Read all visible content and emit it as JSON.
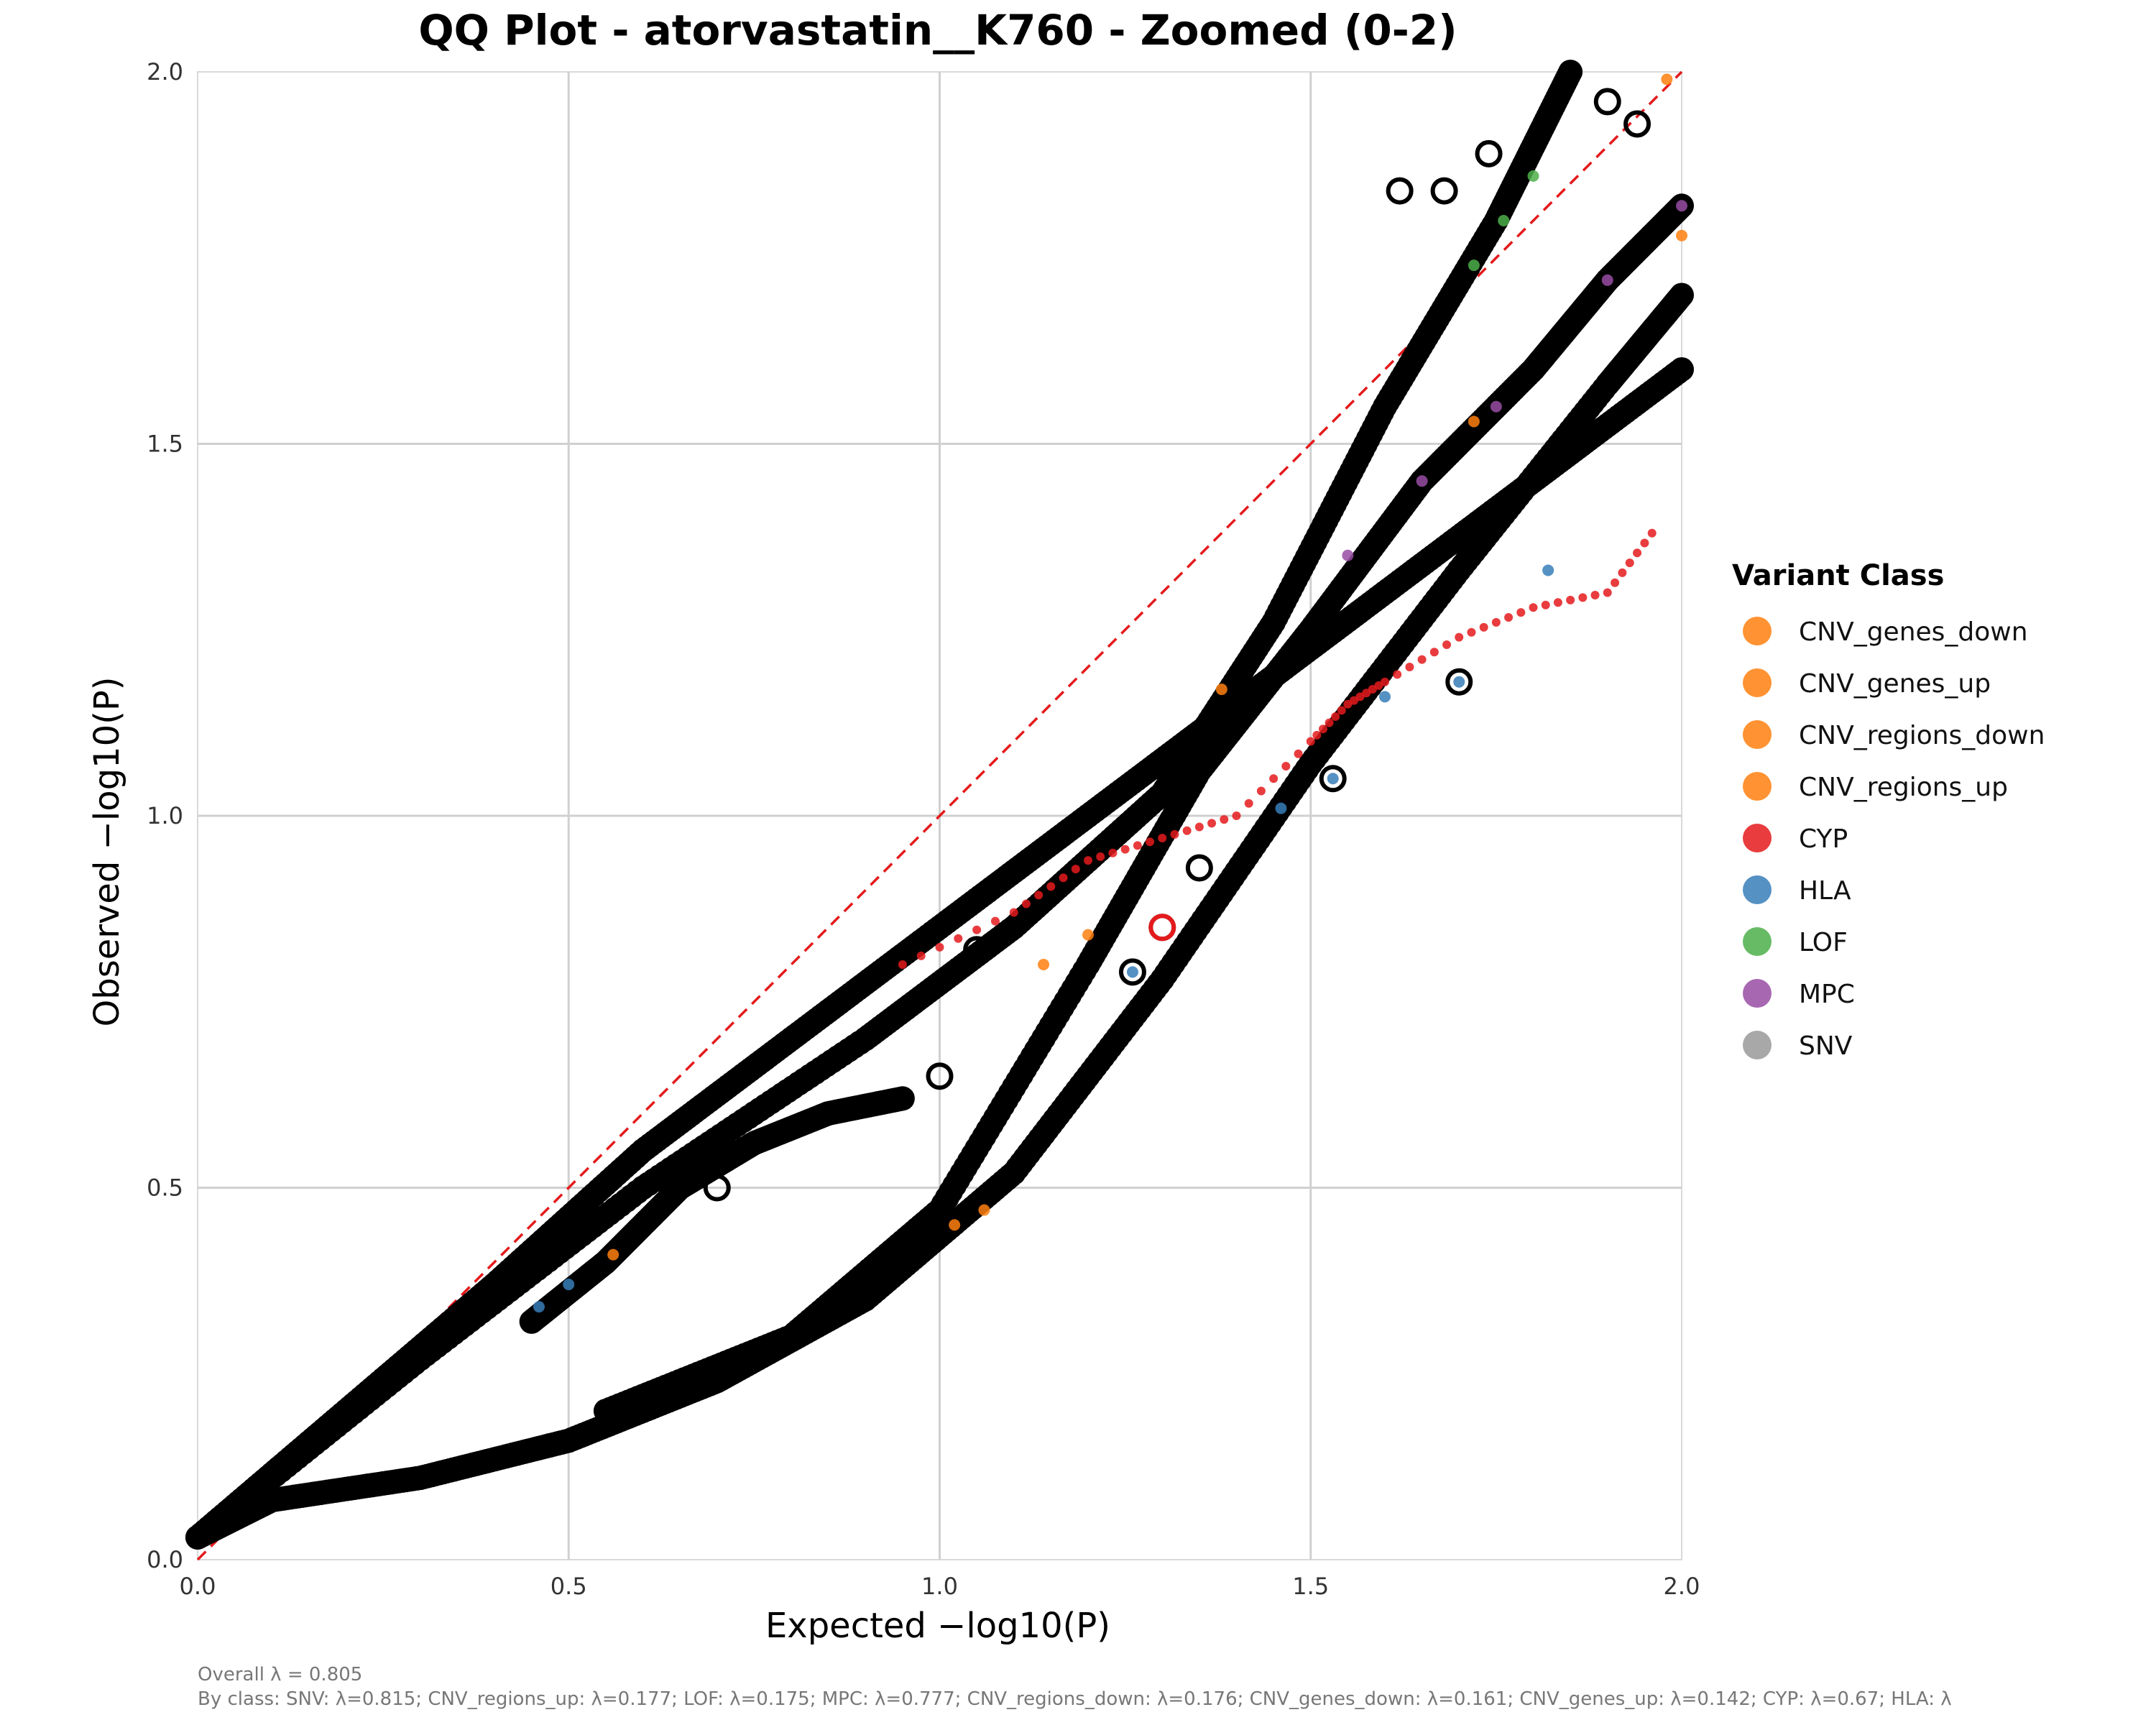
{
  "chart_data": {
    "type": "scatter",
    "title": "QQ Plot - atorvastatin__K760 - Zoomed (0-2)",
    "xlabel": "Expected −log10(P)",
    "ylabel": "Observed −log10(P)",
    "xlim": [
      0,
      2
    ],
    "ylim": [
      0,
      2
    ],
    "x_ticks": [
      "0.0",
      "0.5",
      "1.0",
      "1.5",
      "2.0"
    ],
    "y_ticks": [
      "0.0",
      "0.5",
      "1.0",
      "1.5",
      "2.0"
    ],
    "grid": true,
    "reference_line": {
      "style": "dashed",
      "color": "#e41a1c",
      "from": [
        0,
        0
      ],
      "to": [
        2,
        2
      ]
    },
    "legend": {
      "title": "Variant Class",
      "placement": "right",
      "items": [
        {
          "name": "CNV_genes_down",
          "color": "#ff7f0e"
        },
        {
          "name": "CNV_genes_up",
          "color": "#ff7f0e"
        },
        {
          "name": "CNV_regions_down",
          "color": "#ff7f0e"
        },
        {
          "name": "CNV_regions_up",
          "color": "#ff7f0e"
        },
        {
          "name": "CYP",
          "color": "#e41a1c"
        },
        {
          "name": "HLA",
          "color": "#377eb8"
        },
        {
          "name": "LOF",
          "color": "#4daf4a"
        },
        {
          "name": "MPC",
          "color": "#984ea3"
        },
        {
          "name": "SNV",
          "color": "#999999"
        }
      ]
    },
    "series": [
      {
        "class": "SNV",
        "x": [
          0,
          0.1,
          0.3,
          0.5,
          0.7,
          0.9,
          1.1,
          1.3,
          1.5,
          1.7,
          1.9,
          2.0
        ],
        "y": [
          0.03,
          0.08,
          0.11,
          0.16,
          0.24,
          0.35,
          0.52,
          0.78,
          1.07,
          1.33,
          1.58,
          1.7
        ]
      },
      {
        "class": "SNV",
        "x": [
          0,
          0.2,
          0.4,
          0.6,
          0.8,
          1.0,
          1.2,
          1.4,
          1.6,
          1.8,
          2.0
        ],
        "y": [
          0.03,
          0.2,
          0.37,
          0.55,
          0.7,
          0.85,
          1.0,
          1.15,
          1.3,
          1.45,
          1.6
        ]
      },
      {
        "class": "SNV",
        "x": [
          0.55,
          0.8,
          1.0,
          1.2,
          1.35,
          1.5,
          1.65,
          1.8,
          1.9,
          2.0
        ],
        "y": [
          0.2,
          0.3,
          0.47,
          0.8,
          1.06,
          1.25,
          1.45,
          1.6,
          1.72,
          1.82
        ]
      },
      {
        "class": "SNV",
        "x": [
          0,
          0.3,
          0.6,
          0.9,
          1.1,
          1.3,
          1.45,
          1.6,
          1.75,
          1.85
        ],
        "y": [
          0.03,
          0.27,
          0.5,
          0.7,
          0.85,
          1.03,
          1.26,
          1.55,
          1.8,
          2.0
        ]
      },
      {
        "class": "SNV",
        "x": [
          0.45,
          0.55,
          0.65,
          0.75,
          0.85,
          0.95
        ],
        "y": [
          0.32,
          0.4,
          0.5,
          0.56,
          0.6,
          0.62
        ]
      },
      {
        "class": "CYP",
        "x": [
          0.95,
          1.1,
          1.2,
          1.3,
          1.4,
          1.5,
          1.55,
          1.6,
          1.7,
          1.8,
          1.9,
          1.96
        ],
        "y": [
          0.8,
          0.87,
          0.94,
          0.97,
          1.0,
          1.1,
          1.15,
          1.18,
          1.24,
          1.28,
          1.3,
          1.38
        ]
      },
      {
        "class": "MPC",
        "x": [
          1.55,
          1.65,
          1.75,
          1.9,
          2.0
        ],
        "y": [
          1.35,
          1.45,
          1.55,
          1.72,
          1.82
        ]
      },
      {
        "class": "HLA",
        "x": [
          0.46,
          0.5,
          1.46,
          1.6,
          1.82,
          1.7,
          1.26,
          1.53
        ],
        "y": [
          0.34,
          0.37,
          1.01,
          1.16,
          1.33,
          1.18,
          0.79,
          1.05
        ]
      },
      {
        "class": "CNV_genes_down",
        "x": [
          0.56,
          1.02,
          1.06,
          1.14,
          1.2,
          1.38,
          1.72,
          1.98,
          2.0
        ],
        "y": [
          0.41,
          0.45,
          0.47,
          0.8,
          0.84,
          1.17,
          1.53,
          1.99,
          1.78
        ]
      },
      {
        "class": "LOF",
        "x": [
          1.72,
          1.76,
          1.8
        ],
        "y": [
          1.74,
          1.8,
          1.86
        ]
      }
    ],
    "highlighted_outliers": {
      "x": [
        1.05,
        1.26,
        1.3,
        1.35,
        1.53,
        1.62,
        1.68,
        1.7,
        1.74,
        1.9,
        1.94,
        1.0,
        0.7
      ],
      "y": [
        0.82,
        0.79,
        0.85,
        0.93,
        1.05,
        1.84,
        1.84,
        1.18,
        1.89,
        1.96,
        1.93,
        0.65,
        0.5
      ]
    },
    "annotations": {
      "overall": "Overall λ = 0.805",
      "by_class": "By class: SNV: λ=0.815; CNV_regions_up: λ=0.177; LOF: λ=0.175; MPC: λ=0.777; CNV_regions_down: λ=0.176; CNV_genes_down: λ=0.161; CNV_genes_up: λ=0.142; CYP: λ=0.67; HLA: λ"
    }
  }
}
